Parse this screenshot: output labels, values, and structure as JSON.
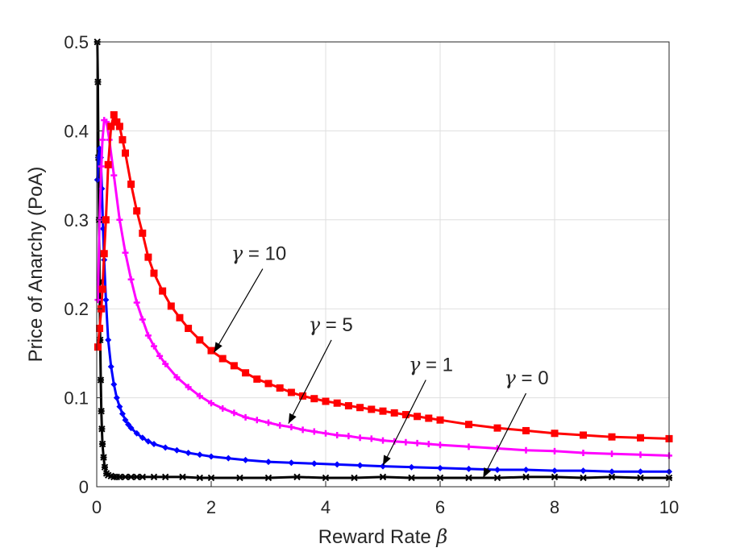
{
  "chart_data": {
    "type": "line",
    "xlabel": "Reward Rate",
    "xlabel_symbol": "β",
    "ylabel": "Price of Anarchy (PoA)",
    "xlim": [
      0,
      10
    ],
    "ylim": [
      0,
      0.5
    ],
    "xticks": [
      0,
      2,
      4,
      6,
      8,
      10
    ],
    "yticks": [
      0,
      0.1,
      0.2,
      0.3,
      0.4,
      0.5
    ],
    "xtick_labels": [
      "0",
      "2",
      "4",
      "6",
      "8",
      "10"
    ],
    "ytick_labels": [
      "0",
      "0.1",
      "0.2",
      "0.3",
      "0.4",
      "0.5"
    ],
    "grid": true,
    "series": [
      {
        "name": "γ = 10",
        "color": "#ff0000",
        "marker": "square",
        "x": [
          0.02,
          0.05,
          0.08,
          0.1,
          0.13,
          0.16,
          0.2,
          0.25,
          0.3,
          0.35,
          0.4,
          0.45,
          0.5,
          0.6,
          0.7,
          0.8,
          0.9,
          1.0,
          1.15,
          1.3,
          1.45,
          1.6,
          1.8,
          2.0,
          2.2,
          2.4,
          2.6,
          2.8,
          3.0,
          3.2,
          3.4,
          3.6,
          3.8,
          4.0,
          4.2,
          4.4,
          4.6,
          4.8,
          5.0,
          5.2,
          5.4,
          5.6,
          5.8,
          6.0,
          6.5,
          7.0,
          7.5,
          8.0,
          8.5,
          9.0,
          9.5,
          10.0
        ],
        "y": [
          0.157,
          0.178,
          0.2,
          0.222,
          0.262,
          0.3,
          0.362,
          0.405,
          0.418,
          0.41,
          0.405,
          0.39,
          0.375,
          0.34,
          0.31,
          0.285,
          0.258,
          0.24,
          0.22,
          0.203,
          0.19,
          0.178,
          0.165,
          0.153,
          0.144,
          0.136,
          0.128,
          0.121,
          0.116,
          0.111,
          0.106,
          0.102,
          0.099,
          0.096,
          0.094,
          0.091,
          0.089,
          0.087,
          0.085,
          0.083,
          0.081,
          0.079,
          0.077,
          0.075,
          0.07,
          0.066,
          0.063,
          0.06,
          0.058,
          0.056,
          0.055,
          0.054
        ]
      },
      {
        "name": "γ = 5",
        "color": "#ff00ff",
        "marker": "plus",
        "x": [
          0.02,
          0.05,
          0.08,
          0.1,
          0.13,
          0.17,
          0.22,
          0.3,
          0.4,
          0.5,
          0.6,
          0.7,
          0.8,
          0.9,
          1.0,
          1.1,
          1.2,
          1.4,
          1.6,
          1.8,
          2.0,
          2.2,
          2.4,
          2.6,
          2.8,
          3.0,
          3.2,
          3.4,
          3.6,
          3.8,
          4.0,
          4.2,
          4.4,
          4.6,
          4.8,
          5.0,
          5.2,
          5.4,
          5.6,
          5.8,
          6.0,
          6.5,
          7.0,
          7.5,
          8.0,
          8.5,
          9.0,
          9.5,
          10.0
        ],
        "y": [
          0.21,
          0.3,
          0.36,
          0.39,
          0.412,
          0.41,
          0.39,
          0.35,
          0.3,
          0.263,
          0.233,
          0.207,
          0.188,
          0.17,
          0.158,
          0.147,
          0.138,
          0.123,
          0.112,
          0.102,
          0.094,
          0.088,
          0.083,
          0.078,
          0.075,
          0.072,
          0.069,
          0.067,
          0.064,
          0.062,
          0.06,
          0.058,
          0.057,
          0.055,
          0.054,
          0.052,
          0.051,
          0.05,
          0.049,
          0.048,
          0.047,
          0.045,
          0.043,
          0.041,
          0.04,
          0.038,
          0.037,
          0.036,
          0.035
        ]
      },
      {
        "name": "γ = 1",
        "color": "#0000ff",
        "marker": "diamond",
        "x": [
          0.01,
          0.03,
          0.05,
          0.07,
          0.09,
          0.11,
          0.13,
          0.16,
          0.2,
          0.25,
          0.3,
          0.35,
          0.4,
          0.45,
          0.5,
          0.55,
          0.6,
          0.7,
          0.8,
          0.9,
          1.0,
          1.2,
          1.4,
          1.6,
          1.8,
          2.0,
          2.3,
          2.6,
          3.0,
          3.4,
          3.8,
          4.2,
          4.6,
          5.0,
          5.5,
          6.0,
          6.5,
          7.0,
          7.5,
          8.0,
          8.5,
          9.0,
          9.5,
          10.0
        ],
        "y": [
          0.345,
          0.37,
          0.38,
          0.37,
          0.335,
          0.29,
          0.255,
          0.21,
          0.165,
          0.135,
          0.115,
          0.1,
          0.09,
          0.082,
          0.075,
          0.07,
          0.066,
          0.06,
          0.055,
          0.051,
          0.048,
          0.044,
          0.041,
          0.038,
          0.036,
          0.034,
          0.032,
          0.03,
          0.028,
          0.027,
          0.026,
          0.025,
          0.024,
          0.023,
          0.022,
          0.021,
          0.02,
          0.019,
          0.019,
          0.018,
          0.018,
          0.017,
          0.017,
          0.017
        ]
      },
      {
        "name": "γ = 0",
        "color": "#000000",
        "marker": "asterisk",
        "x": [
          0.01,
          0.02,
          0.03,
          0.04,
          0.05,
          0.06,
          0.07,
          0.08,
          0.09,
          0.1,
          0.12,
          0.14,
          0.17,
          0.2,
          0.25,
          0.3,
          0.35,
          0.4,
          0.5,
          0.6,
          0.7,
          0.8,
          1.0,
          1.2,
          1.5,
          1.8,
          2.0,
          2.5,
          3.0,
          3.5,
          4.0,
          4.5,
          5.0,
          5.5,
          6.0,
          6.5,
          7.0,
          7.5,
          8.0,
          8.5,
          9.0,
          9.5,
          10.0
        ],
        "y": [
          0.5,
          0.455,
          0.37,
          0.3,
          0.23,
          0.165,
          0.12,
          0.085,
          0.065,
          0.048,
          0.033,
          0.022,
          0.015,
          0.013,
          0.012,
          0.011,
          0.011,
          0.011,
          0.011,
          0.011,
          0.011,
          0.011,
          0.011,
          0.011,
          0.011,
          0.01,
          0.01,
          0.01,
          0.01,
          0.011,
          0.01,
          0.01,
          0.011,
          0.01,
          0.01,
          0.01,
          0.01,
          0.011,
          0.011,
          0.01,
          0.011,
          0.01,
          0.01
        ]
      }
    ],
    "annotations": [
      {
        "text": "γ = 10",
        "label_x": 2.35,
        "label_y": 0.255,
        "arrow_from_x": 2.9,
        "arrow_from_y": 0.245,
        "arrow_to_x": 2.05,
        "arrow_to_y": 0.151
      },
      {
        "text": "γ = 5",
        "label_x": 3.7,
        "label_y": 0.175,
        "arrow_from_x": 4.1,
        "arrow_from_y": 0.165,
        "arrow_to_x": 3.35,
        "arrow_to_y": 0.071
      },
      {
        "text": "γ = 1",
        "label_x": 5.45,
        "label_y": 0.13,
        "arrow_from_x": 5.75,
        "arrow_from_y": 0.12,
        "arrow_to_x": 5.0,
        "arrow_to_y": 0.024
      },
      {
        "text": "γ = 0",
        "label_x": 7.12,
        "label_y": 0.115,
        "arrow_from_x": 7.5,
        "arrow_from_y": 0.105,
        "arrow_to_x": 6.75,
        "arrow_to_y": 0.01
      }
    ]
  }
}
